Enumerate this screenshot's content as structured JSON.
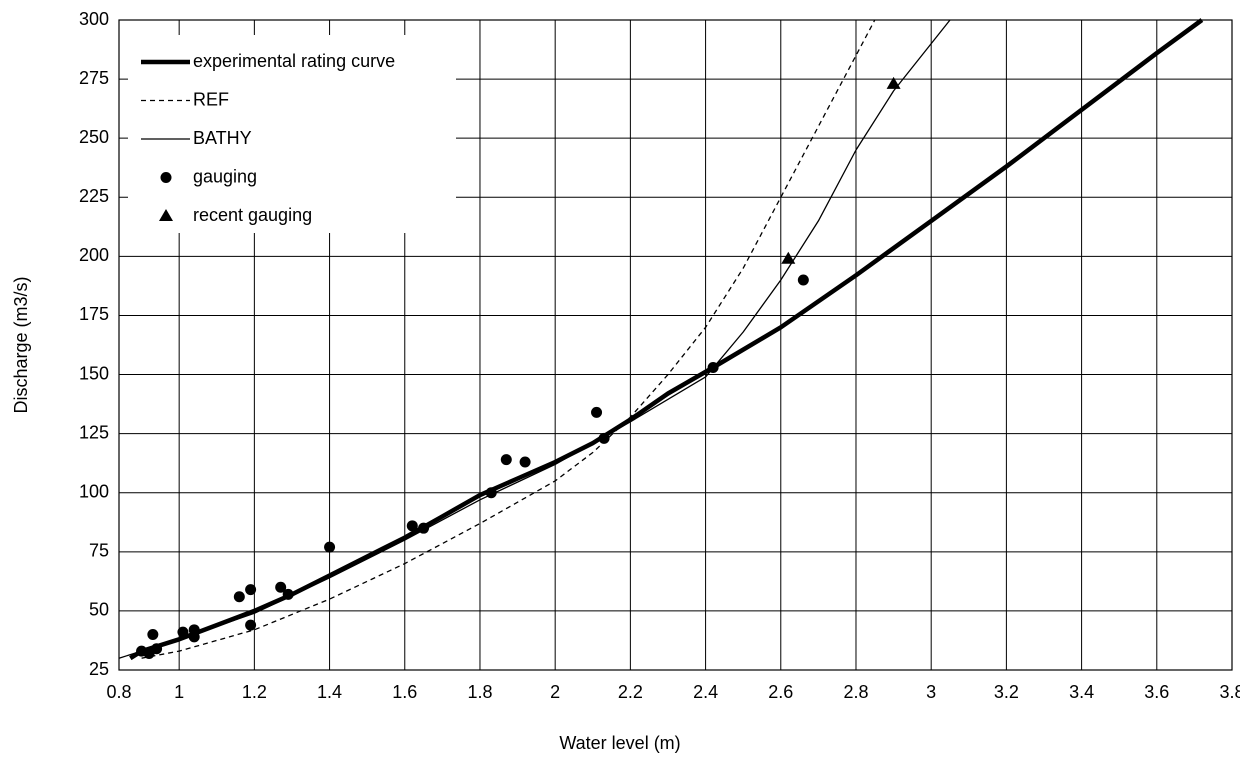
{
  "chart_data": {
    "type": "line",
    "x_label": "Water level (m)",
    "y_label": "Discharge (m3/s)",
    "xlim": [
      0.84,
      3.8
    ],
    "xticks": [
      {
        "value": 0.84,
        "label": "0.8"
      },
      1,
      1.2,
      1.4,
      1.6,
      1.8,
      2,
      2.2,
      2.4,
      2.6,
      2.8,
      3,
      3.2,
      3.4,
      3.6,
      3.8
    ],
    "ylim": [
      25,
      300
    ],
    "yticks": [
      25,
      50,
      75,
      100,
      125,
      150,
      175,
      200,
      225,
      250,
      275,
      300
    ],
    "grid": true,
    "legend": "upper-left",
    "series": [
      {
        "name": "experimental rating curve",
        "color": "#000000",
        "style": "thick",
        "x": [
          0.87,
          0.9,
          1.0,
          1.1,
          1.2,
          1.3,
          1.4,
          1.5,
          1.6,
          1.7,
          1.8,
          1.9,
          2.0,
          2.1,
          2.2,
          2.3,
          2.42,
          2.6,
          2.8,
          3.0,
          3.2,
          3.4,
          3.6,
          3.72
        ],
        "values": [
          30,
          33,
          38,
          44,
          50,
          57,
          65,
          73,
          81,
          90,
          99,
          106,
          113,
          121,
          131,
          142,
          153,
          170,
          192,
          215,
          238,
          262,
          286,
          300
        ]
      },
      {
        "name": "REF",
        "color": "#000000",
        "style": "dashed",
        "x": [
          0.9,
          1.0,
          1.2,
          1.4,
          1.6,
          1.8,
          2.0,
          2.1,
          2.2,
          2.3,
          2.4,
          2.5,
          2.6,
          2.7,
          2.8,
          2.85
        ],
        "values": [
          30,
          33,
          42,
          55,
          70,
          87,
          105,
          117,
          132,
          150,
          170,
          195,
          225,
          255,
          285,
          300
        ]
      },
      {
        "name": "BATHY",
        "color": "#000000",
        "style": "thin",
        "x": [
          0.84,
          1.0,
          1.2,
          1.4,
          1.6,
          1.8,
          2.0,
          2.2,
          2.4,
          2.5,
          2.6,
          2.7,
          2.8,
          2.9,
          3.0,
          3.05
        ],
        "values": [
          30,
          38,
          49,
          64,
          80,
          97,
          112,
          130,
          149,
          168,
          190,
          215,
          245,
          270,
          290,
          300
        ]
      },
      {
        "name": "gauging",
        "color": "#000000",
        "marker": "circle",
        "x": [
          0.9,
          0.92,
          0.93,
          0.94,
          1.01,
          1.04,
          1.04,
          1.16,
          1.19,
          1.19,
          1.27,
          1.29,
          1.4,
          1.62,
          1.65,
          1.83,
          1.87,
          1.92,
          2.11,
          2.13,
          2.42,
          2.66
        ],
        "values": [
          33,
          32,
          40,
          34,
          41,
          42,
          39,
          56,
          59,
          44,
          60,
          57,
          77,
          86,
          85,
          100,
          114,
          113,
          134,
          123,
          153,
          190
        ]
      },
      {
        "name": "recent gauging",
        "color": "#000000",
        "marker": "triangle",
        "x": [
          2.62,
          2.9
        ],
        "values": [
          199,
          273
        ]
      }
    ]
  }
}
